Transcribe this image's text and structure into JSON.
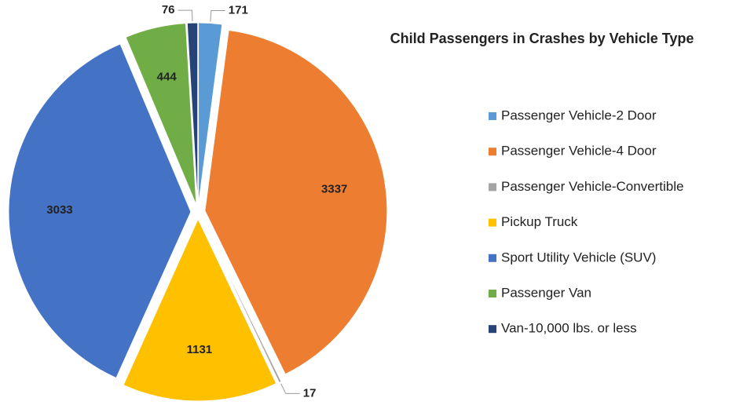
{
  "chart_data": {
    "type": "pie",
    "title": "Child Passengers in Crashes by Vehicle Type",
    "categories": [
      "Passenger Vehicle-2 Door",
      "Passenger Vehicle-4 Door",
      "Passenger Vehicle-Convertible",
      "Pickup Truck",
      "Sport Utility Vehicle (SUV)",
      "Passenger Van",
      "Van-10,000 lbs. or less"
    ],
    "values": [
      171,
      3337,
      17,
      1131,
      3033,
      444,
      76
    ],
    "colors": [
      "#5b9bd5",
      "#ed7d31",
      "#a5a5a5",
      "#ffc000",
      "#4472c4",
      "#70ad47",
      "#264478"
    ],
    "legend": "right"
  }
}
